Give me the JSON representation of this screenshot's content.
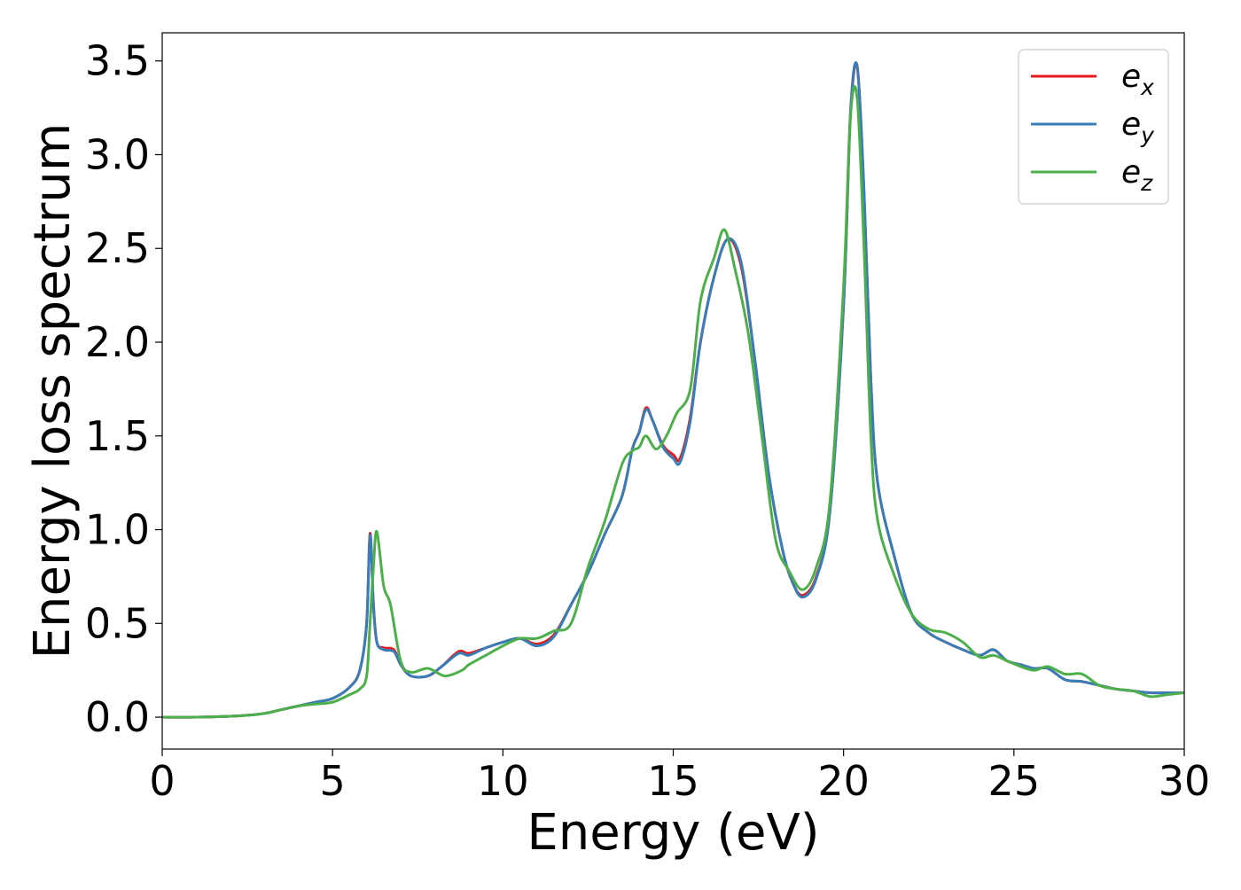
{
  "chart_data": {
    "type": "line",
    "title": "",
    "xlabel": "Energy (eV)",
    "ylabel": "Energy loss spectrum",
    "xlim": [
      0,
      30
    ],
    "ylim": [
      -0.17,
      3.65
    ],
    "xticks": [
      0,
      5,
      10,
      15,
      20,
      25,
      30
    ],
    "xtick_labels": [
      "0",
      "5",
      "10",
      "15",
      "20",
      "25",
      "30"
    ],
    "yticks": [
      0.0,
      0.5,
      1.0,
      1.5,
      2.0,
      2.5,
      3.0,
      3.5
    ],
    "ytick_labels": [
      "0.0",
      "0.5",
      "1.0",
      "1.5",
      "2.0",
      "2.5",
      "3.0",
      "3.5"
    ],
    "grid": false,
    "legend_position": "top-right",
    "series": [
      {
        "name": "e_x",
        "legend_base": "e",
        "legend_sub": "x",
        "color": "#e41a1c",
        "x": [
          0,
          1,
          2,
          2.5,
          3,
          3.5,
          4,
          4.5,
          5,
          5.5,
          5.8,
          6.0,
          6.1,
          6.2,
          6.3,
          6.5,
          6.8,
          7.0,
          7.3,
          7.8,
          8.2,
          8.7,
          9.0,
          9.5,
          10.0,
          10.5,
          11.0,
          11.5,
          12.0,
          12.5,
          13.0,
          13.5,
          13.8,
          14.0,
          14.2,
          14.4,
          14.7,
          15.0,
          15.2,
          15.5,
          15.8,
          16.2,
          16.6,
          17.0,
          17.4,
          17.8,
          18.2,
          18.5,
          18.8,
          19.2,
          19.6,
          20.0,
          20.2,
          20.4,
          20.6,
          20.8,
          21.0,
          21.5,
          22.0,
          22.5,
          23.0,
          23.5,
          24.0,
          24.4,
          24.8,
          25.2,
          25.6,
          26.0,
          26.5,
          27.0,
          27.5,
          28.0,
          28.5,
          29.0,
          29.5,
          30.0
        ],
        "y": [
          0,
          0,
          0.005,
          0.01,
          0.02,
          0.04,
          0.06,
          0.08,
          0.1,
          0.16,
          0.25,
          0.5,
          0.98,
          0.6,
          0.4,
          0.37,
          0.36,
          0.28,
          0.22,
          0.22,
          0.27,
          0.35,
          0.34,
          0.37,
          0.4,
          0.42,
          0.39,
          0.44,
          0.6,
          0.77,
          0.98,
          1.18,
          1.43,
          1.52,
          1.65,
          1.58,
          1.45,
          1.4,
          1.38,
          1.6,
          2.0,
          2.35,
          2.55,
          2.4,
          1.9,
          1.3,
          0.9,
          0.72,
          0.65,
          0.75,
          1.1,
          2.2,
          3.2,
          3.47,
          2.8,
          1.8,
          1.25,
          0.85,
          0.55,
          0.45,
          0.4,
          0.36,
          0.33,
          0.36,
          0.3,
          0.28,
          0.26,
          0.26,
          0.2,
          0.19,
          0.17,
          0.15,
          0.14,
          0.13,
          0.13,
          0.13
        ]
      },
      {
        "name": "e_y",
        "legend_base": "e",
        "legend_sub": "y",
        "color": "#377eb8",
        "x": [
          0,
          1,
          2,
          2.5,
          3,
          3.5,
          4,
          4.5,
          5,
          5.5,
          5.8,
          6.0,
          6.1,
          6.2,
          6.3,
          6.5,
          6.8,
          7.0,
          7.3,
          7.8,
          8.2,
          8.7,
          9.0,
          9.5,
          10.0,
          10.5,
          11.0,
          11.5,
          12.0,
          12.5,
          13.0,
          13.5,
          13.8,
          14.0,
          14.2,
          14.4,
          14.7,
          15.0,
          15.2,
          15.5,
          15.8,
          16.2,
          16.6,
          17.0,
          17.4,
          17.8,
          18.2,
          18.5,
          18.8,
          19.2,
          19.6,
          20.0,
          20.2,
          20.4,
          20.6,
          20.8,
          21.0,
          21.5,
          22.0,
          22.5,
          23.0,
          23.5,
          24.0,
          24.4,
          24.8,
          25.2,
          25.6,
          26.0,
          26.5,
          27.0,
          27.5,
          28.0,
          28.5,
          29.0,
          29.5,
          30.0
        ],
        "y": [
          0,
          0,
          0.005,
          0.01,
          0.02,
          0.04,
          0.06,
          0.08,
          0.1,
          0.16,
          0.25,
          0.5,
          0.97,
          0.6,
          0.4,
          0.36,
          0.35,
          0.28,
          0.22,
          0.22,
          0.27,
          0.34,
          0.33,
          0.37,
          0.4,
          0.42,
          0.38,
          0.43,
          0.6,
          0.77,
          0.98,
          1.18,
          1.43,
          1.52,
          1.64,
          1.58,
          1.44,
          1.38,
          1.36,
          1.58,
          2.0,
          2.35,
          2.55,
          2.42,
          1.9,
          1.3,
          0.9,
          0.72,
          0.64,
          0.74,
          1.1,
          2.2,
          3.22,
          3.47,
          2.8,
          1.8,
          1.25,
          0.85,
          0.55,
          0.45,
          0.4,
          0.36,
          0.33,
          0.36,
          0.3,
          0.28,
          0.26,
          0.26,
          0.2,
          0.19,
          0.17,
          0.15,
          0.14,
          0.13,
          0.13,
          0.13
        ]
      },
      {
        "name": "e_z",
        "legend_base": "e",
        "legend_sub": "z",
        "color": "#4daf4a",
        "x": [
          0,
          1,
          2,
          2.5,
          3,
          3.5,
          4,
          4.5,
          5,
          5.5,
          5.8,
          6.0,
          6.1,
          6.2,
          6.3,
          6.5,
          6.7,
          7.0,
          7.3,
          7.8,
          8.3,
          8.8,
          9.0,
          9.5,
          10.0,
          10.5,
          11.0,
          11.5,
          12.0,
          12.5,
          13.0,
          13.5,
          13.8,
          14.0,
          14.2,
          14.5,
          14.8,
          15.1,
          15.5,
          15.8,
          16.2,
          16.5,
          16.8,
          17.2,
          17.6,
          18.0,
          18.4,
          18.8,
          19.2,
          19.6,
          20.0,
          20.2,
          20.4,
          20.6,
          20.8,
          21.0,
          21.5,
          22.0,
          22.5,
          23.0,
          23.5,
          24.0,
          24.4,
          24.8,
          25.2,
          25.6,
          26.0,
          26.5,
          27.0,
          27.5,
          28.0,
          28.5,
          29.0,
          29.5,
          30.0
        ],
        "y": [
          0,
          0,
          0.005,
          0.01,
          0.02,
          0.04,
          0.06,
          0.07,
          0.08,
          0.12,
          0.15,
          0.22,
          0.5,
          0.8,
          0.99,
          0.7,
          0.6,
          0.3,
          0.24,
          0.26,
          0.22,
          0.25,
          0.28,
          0.33,
          0.38,
          0.42,
          0.42,
          0.46,
          0.5,
          0.8,
          1.05,
          1.35,
          1.42,
          1.44,
          1.5,
          1.43,
          1.5,
          1.62,
          1.75,
          2.22,
          2.45,
          2.6,
          2.4,
          2.05,
          1.5,
          0.95,
          0.78,
          0.68,
          0.8,
          1.15,
          2.3,
          3.2,
          3.3,
          2.5,
          1.5,
          1.05,
          0.75,
          0.55,
          0.47,
          0.45,
          0.4,
          0.32,
          0.33,
          0.3,
          0.27,
          0.25,
          0.27,
          0.23,
          0.23,
          0.17,
          0.15,
          0.14,
          0.11,
          0.12,
          0.13
        ]
      }
    ]
  }
}
